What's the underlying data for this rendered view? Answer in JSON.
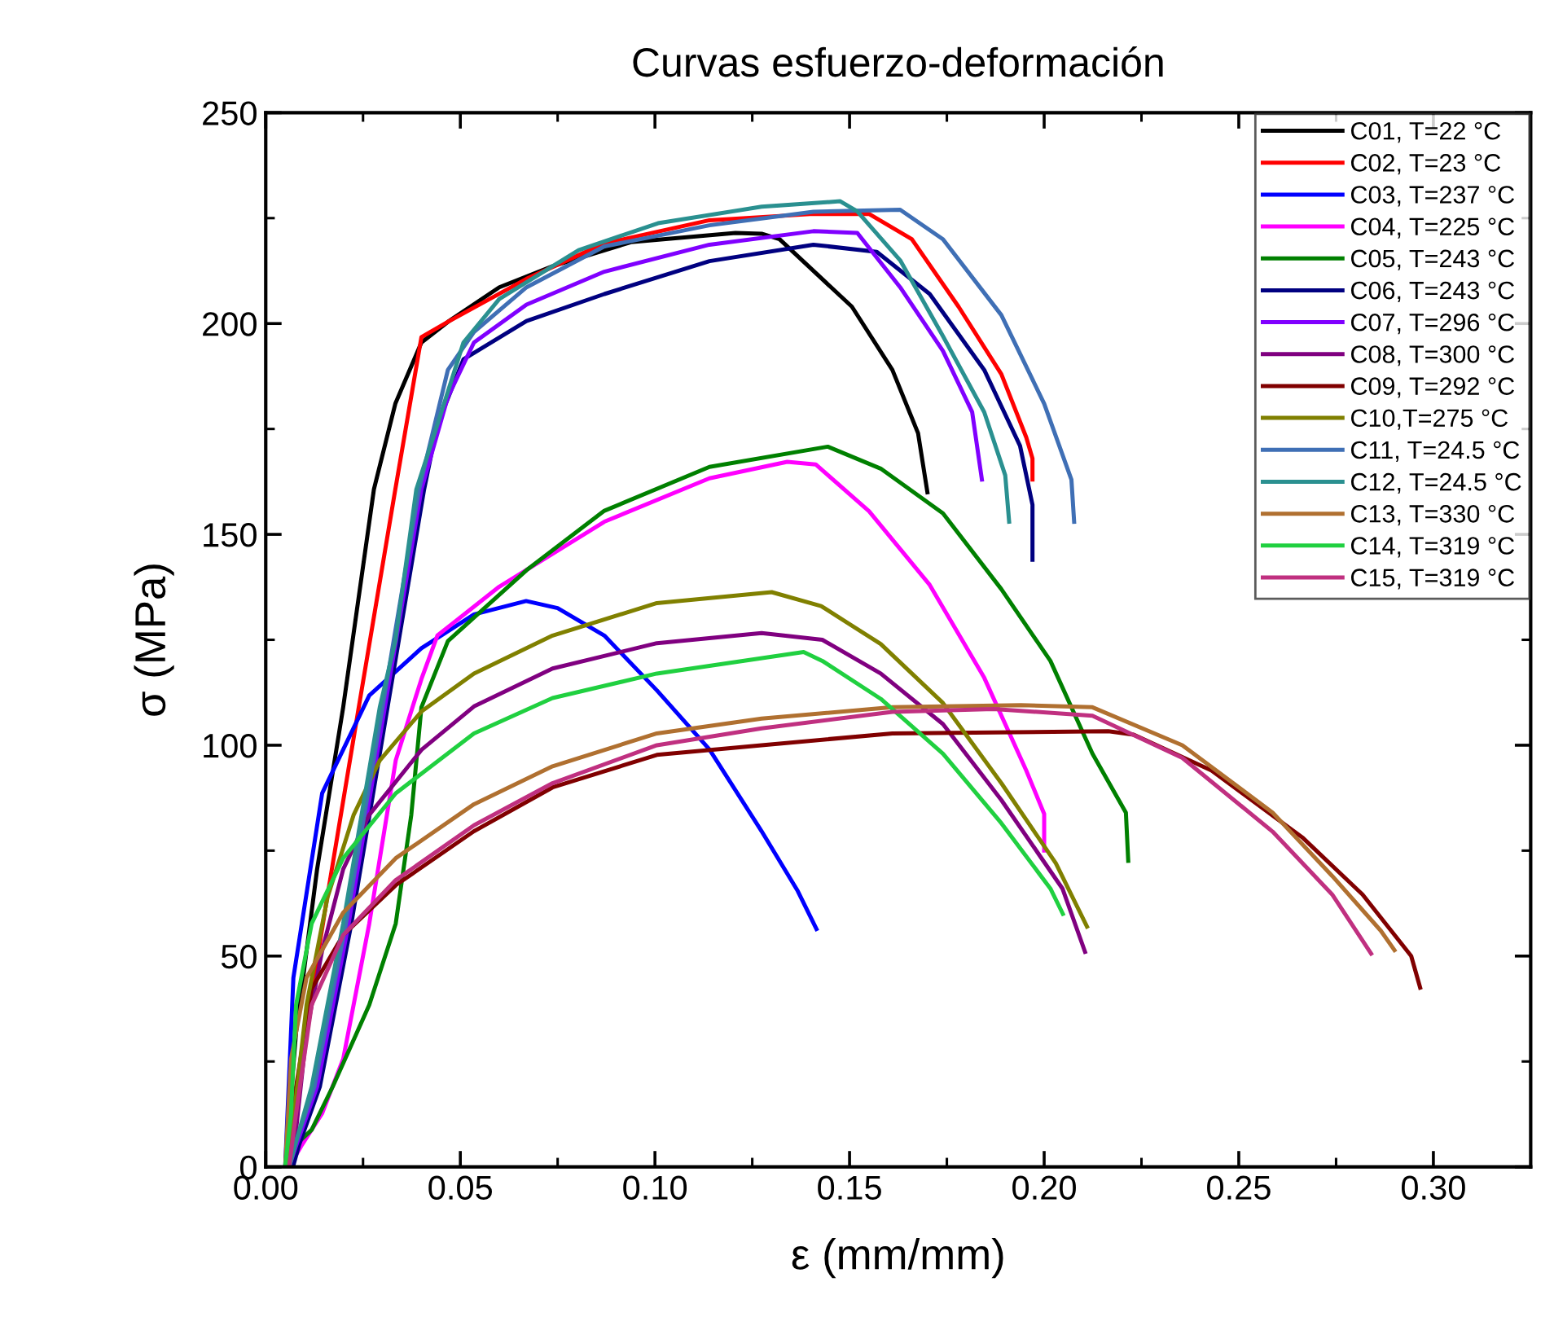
{
  "chart_data": {
    "type": "line",
    "title": "Curvas esfuerzo-deformación",
    "xlabel": "ε (mm/mm)",
    "ylabel": "σ (MPa)",
    "xlim": [
      0,
      0.325
    ],
    "ylim": [
      0,
      250
    ],
    "xticks": [
      {
        "value": 0,
        "label": "0.00"
      },
      {
        "value": 0.05,
        "label": "0.05"
      },
      {
        "value": 0.1,
        "label": "0.10"
      },
      {
        "value": 0.15,
        "label": "0.15"
      },
      {
        "value": 0.2,
        "label": "0.20"
      },
      {
        "value": 0.25,
        "label": "0.25"
      },
      {
        "value": 0.3,
        "label": "0.30"
      }
    ],
    "yticks": [
      0,
      50,
      100,
      150,
      200,
      250
    ],
    "grid": false,
    "legend": "top right",
    "marker": "none",
    "line_style": "solid",
    "series": [
      {
        "name": "C01, T=22 °C",
        "color": "#000000",
        "x": [
          0.005,
          0.0078,
          0.0132,
          0.0199,
          0.0278,
          0.0333,
          0.04,
          0.0468,
          0.06,
          0.0737,
          0.0938,
          0.1207,
          0.1274,
          0.132,
          0.1506,
          0.161,
          0.1676,
          0.17
        ],
        "values": [
          0,
          32,
          70.6,
          109,
          160.7,
          181,
          195.5,
          200.4,
          208.6,
          213.6,
          219.3,
          221.5,
          221.3,
          220,
          204,
          189,
          174,
          160
        ]
      },
      {
        "name": "C02, T=23 °C",
        "color": "#ff0000",
        "x": [
          0.0055,
          0.0065,
          0.0091,
          0.0158,
          0.0239,
          0.0333,
          0.04,
          0.0468,
          0.067,
          0.087,
          0.114,
          0.1407,
          0.155,
          0.166,
          0.178,
          0.189,
          0.1954,
          0.197,
          0.197
        ],
        "values": [
          0,
          6,
          25.6,
          64,
          109,
          160.7,
          196.8,
          200.4,
          210.6,
          219,
          224.5,
          226,
          226,
          220,
          204,
          188,
          173,
          168,
          163
        ]
      },
      {
        "name": "C03, T=237 °C",
        "color": "#0000ff",
        "x": [
          0.005,
          0.0071,
          0.0145,
          0.0266,
          0.04,
          0.0535,
          0.0669,
          0.075,
          0.087,
          0.1005,
          0.114,
          0.1274,
          0.1367,
          0.1415
        ],
        "values": [
          0,
          44.8,
          88.6,
          111.8,
          123,
          131,
          134.2,
          132.5,
          126,
          113,
          99,
          79.6,
          65.4,
          56.4
        ]
      },
      {
        "name": "C04, T=225 °C",
        "color": "#ff00ff",
        "x": [
          0.006,
          0.0091,
          0.0145,
          0.0199,
          0.0266,
          0.0334,
          0.04,
          0.0441,
          0.06,
          0.087,
          0.114,
          0.134,
          0.1413,
          0.155,
          0.1706,
          0.1846,
          0.1954,
          0.2,
          0.2
        ],
        "values": [
          0,
          4.9,
          12.7,
          25.6,
          57.7,
          96.4,
          115.7,
          126,
          137.6,
          153,
          163.3,
          167.2,
          166.6,
          155.5,
          138,
          116,
          94,
          83.7,
          75
        ]
      },
      {
        "name": "C05, T=243 °C",
        "color": "#008000",
        "x": [
          0.005,
          0.0065,
          0.0118,
          0.0172,
          0.0266,
          0.0334,
          0.0374,
          0.04,
          0.0468,
          0.067,
          0.087,
          0.114,
          0.1444,
          0.158,
          0.174,
          0.189,
          0.2016,
          0.2124,
          0.221,
          0.2216
        ],
        "values": [
          0,
          4.2,
          8.8,
          19,
          38.4,
          57.7,
          83.5,
          109,
          124.7,
          141.5,
          155.6,
          166,
          170.8,
          165.6,
          155,
          137,
          120,
          98,
          84,
          72.6
        ]
      },
      {
        "name": "C06, T=243 °C",
        "color": "#000080",
        "x": [
          0.007,
          0.0085,
          0.0139,
          0.022,
          0.0313,
          0.0407,
          0.0441,
          0.0508,
          0.067,
          0.087,
          0.114,
          0.1407,
          0.157,
          0.1706,
          0.1846,
          0.1938,
          0.197,
          0.197
        ],
        "values": [
          0,
          5,
          19,
          57.7,
          109,
          160.7,
          176,
          191.5,
          200.6,
          207,
          214.8,
          218.7,
          217,
          207,
          189,
          171,
          157,
          144
        ]
      },
      {
        "name": "C07, T=296 °C",
        "color": "#8000ff",
        "x": [
          0.006,
          0.0078,
          0.0132,
          0.0213,
          0.0306,
          0.04,
          0.0468,
          0.0535,
          0.067,
          0.087,
          0.114,
          0.1407,
          0.152,
          0.163,
          0.174,
          0.1815,
          0.184
        ],
        "values": [
          0,
          5,
          19,
          57.7,
          109,
          160.7,
          182.6,
          195.5,
          204.5,
          212.3,
          218.7,
          221.9,
          221.5,
          208.6,
          193.5,
          179,
          163
        ]
      },
      {
        "name": "C08, T=300 °C",
        "color": "#800080",
        "x": [
          0.006,
          0.0078,
          0.0105,
          0.0145,
          0.0199,
          0.0266,
          0.04,
          0.0535,
          0.0737,
          0.1005,
          0.1274,
          0.143,
          0.158,
          0.174,
          0.189,
          0.2047,
          0.2105
        ],
        "values": [
          0,
          8.8,
          32,
          51.3,
          70.6,
          83.5,
          98.9,
          109.2,
          118.2,
          124.2,
          126.6,
          125,
          117,
          105,
          87,
          66,
          51
        ]
      },
      {
        "name": "C09, T=292 °C",
        "color": "#800000",
        "x": [
          0.006,
          0.0078,
          0.0118,
          0.0199,
          0.0334,
          0.0535,
          0.0737,
          0.1005,
          0.1274,
          0.161,
          0.2165,
          0.223,
          0.243,
          0.2665,
          0.2818,
          0.2943,
          0.2966
        ],
        "values": [
          0,
          19,
          42.3,
          55,
          66.8,
          79.6,
          90,
          97.7,
          100,
          102.8,
          103.3,
          102.5,
          94,
          78,
          64.6,
          50,
          42.5
        ]
      },
      {
        "name": "C10,T=275 °C",
        "color": "#808000",
        "x": [
          0.005,
          0.0065,
          0.0105,
          0.0159,
          0.0226,
          0.0293,
          0.04,
          0.0535,
          0.0737,
          0.1005,
          0.13,
          0.1427,
          0.158,
          0.174,
          0.189,
          0.203,
          0.211
        ],
        "values": [
          0,
          6.2,
          38.5,
          64,
          83.5,
          96.4,
          108,
          117,
          126,
          133.7,
          136.3,
          133,
          124,
          110,
          91,
          72,
          57
        ]
      },
      {
        "name": "C11, T=24.5 °C",
        "color": "#3f6fb5",
        "x": [
          0.006,
          0.0078,
          0.0125,
          0.0206,
          0.03,
          0.0394,
          0.0468,
          0.0535,
          0.067,
          0.087,
          0.114,
          0.1407,
          0.163,
          0.174,
          0.189,
          0.2,
          0.207,
          0.2077
        ],
        "values": [
          0,
          6,
          19,
          57.7,
          109,
          160.7,
          189,
          198,
          208.6,
          218.3,
          223.3,
          226.5,
          227,
          220,
          202,
          181,
          163,
          153
        ]
      },
      {
        "name": "C12, T=24.5 °C",
        "color": "#2a9090",
        "x": [
          0.006,
          0.0078,
          0.0118,
          0.0199,
          0.0293,
          0.0333,
          0.0387,
          0.0441,
          0.0508,
          0.06,
          0.0804,
          0.1008,
          0.1274,
          0.1476,
          0.152,
          0.163,
          0.174,
          0.1846,
          0.19,
          0.191
        ],
        "values": [
          0,
          6,
          19,
          57.7,
          109,
          124.7,
          160.7,
          176,
          195.5,
          205.8,
          217.4,
          223.8,
          227.7,
          229,
          226.6,
          215,
          197,
          179,
          164,
          153
        ]
      },
      {
        "name": "C13, T=330 °C",
        "color": "#b07030",
        "x": [
          0.005,
          0.0065,
          0.0105,
          0.0199,
          0.0334,
          0.0535,
          0.0737,
          0.1005,
          0.1274,
          0.161,
          0.194,
          0.2124,
          0.2355,
          0.2587,
          0.274,
          0.2865,
          0.29
        ],
        "values": [
          0,
          25.6,
          44.9,
          60.3,
          73.2,
          86,
          95,
          102.8,
          106.3,
          109,
          109.5,
          109,
          100,
          84,
          69,
          56,
          51.4
        ]
      },
      {
        "name": "C14, T=319 °C",
        "color": "#20d040",
        "x": [
          0.005,
          0.0065,
          0.0078,
          0.0118,
          0.0199,
          0.0334,
          0.0535,
          0.0737,
          0.1005,
          0.1382,
          0.143,
          0.158,
          0.174,
          0.189,
          0.2016,
          0.2048
        ],
        "values": [
          0,
          12.7,
          38.4,
          57.7,
          73.2,
          88.6,
          102.8,
          111.2,
          117,
          122.1,
          120,
          111,
          98,
          81.5,
          66,
          60
        ]
      },
      {
        "name": "C15, T=319 °C",
        "color": "#c03080",
        "x": [
          0.006,
          0.0078,
          0.0118,
          0.0199,
          0.0334,
          0.0535,
          0.0737,
          0.1005,
          0.1274,
          0.161,
          0.187,
          0.2124,
          0.2355,
          0.2587,
          0.274,
          0.284
        ],
        "values": [
          0,
          12.7,
          38.4,
          55,
          68,
          81,
          91,
          100,
          104,
          107.9,
          108.6,
          107,
          97,
          79.5,
          64.6,
          50.6
        ]
      }
    ]
  }
}
